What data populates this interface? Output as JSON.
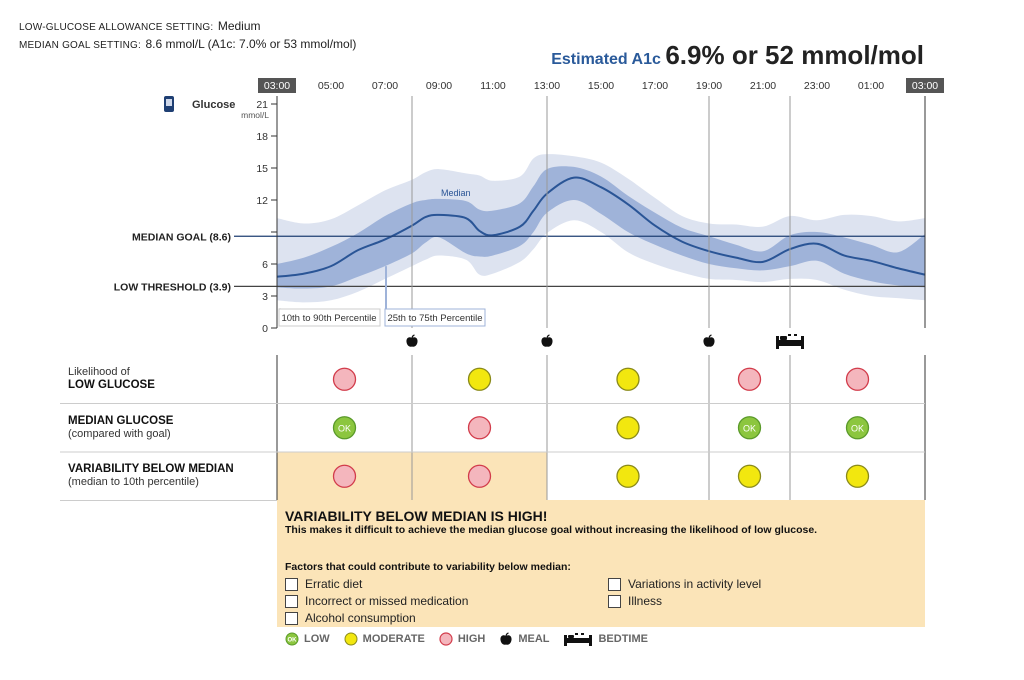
{
  "header": {
    "allowance_label": "LOW-GLUCOSE ALLOWANCE SETTING:",
    "allowance_value": "Medium",
    "goal_label": "MEDIAN GOAL SETTING:",
    "goal_value": "8.6 mmol/L (A1c: 7.0% or 53 mmol/mol)",
    "a1c_label": "Estimated A1c",
    "a1c_value": "6.9% or 52 mmol/mol"
  },
  "colors": {
    "band_outer": "#dde3f0",
    "band_inner": "#9fb3d9",
    "median_line": "#2a5596",
    "reference_line": "#1f3f73",
    "low_dot": "#8cc63f",
    "moderate_dot": "#f2e70f",
    "high_dot": "#f4b6bd",
    "high_ring": "#d23c4b",
    "note_bg": "#fbe4b8"
  },
  "chart_data": {
    "type": "area",
    "y_label": "Glucose",
    "y_unit": "mmol/L",
    "ylim": [
      0,
      21
    ],
    "yticks": [
      0,
      3,
      6,
      9,
      12,
      15,
      18,
      21
    ],
    "ytick_labels": [
      "0",
      "3",
      "6",
      "",
      "12",
      "15",
      "18",
      "21"
    ],
    "x_unit": "hours since 03:00",
    "xlim": [
      0,
      24
    ],
    "xtick_labels": [
      "03:00",
      "05:00",
      "07:00",
      "09:00",
      "11:00",
      "13:00",
      "15:00",
      "17:00",
      "19:00",
      "21:00",
      "23:00",
      "01:00",
      "03:00"
    ],
    "x": [
      0,
      1,
      2,
      3,
      4,
      5,
      5.5,
      6,
      7,
      7.5,
      8,
      9,
      9.5,
      10,
      11,
      12,
      13,
      14,
      15,
      16,
      17,
      18,
      19,
      20,
      21,
      22,
      23,
      24
    ],
    "median": [
      4.8,
      5.1,
      5.8,
      7.3,
      8.3,
      9.6,
      10.4,
      10.6,
      10.3,
      9.1,
      8.7,
      9.5,
      11,
      12.6,
      14.1,
      13.2,
      11.6,
      9.6,
      8.1,
      7.2,
      6.6,
      6.2,
      7.4,
      7.9,
      6.8,
      6.3,
      5.6,
      5.0
    ],
    "p25": [
      3.8,
      3.7,
      3.9,
      4.8,
      5.8,
      7.0,
      8.0,
      8.5,
      7.0,
      6.7,
      6.8,
      7.7,
      9.0,
      10.8,
      12.0,
      10.7,
      9.0,
      7.8,
      6.8,
      6.0,
      5.6,
      5.4,
      5.8,
      6.3,
      5.1,
      4.4,
      4.0,
      3.8
    ],
    "p75": [
      6.0,
      6.6,
      7.6,
      8.9,
      10.5,
      11.7,
      12.0,
      12.1,
      11.9,
      11.1,
      11.0,
      11.7,
      13.3,
      14.9,
      15.1,
      14.2,
      12.4,
      10.8,
      9.4,
      8.6,
      7.8,
      7.2,
      8.7,
      9.0,
      8.5,
      7.8,
      7.1,
      8.8
    ],
    "p10": [
      2.6,
      2.4,
      2.6,
      3.4,
      4.6,
      5.8,
      6.4,
      6.8,
      6.4,
      5.0,
      5.1,
      6.2,
      7.4,
      8.9,
      10.1,
      9.0,
      7.1,
      6.0,
      5.2,
      4.6,
      4.5,
      4.3,
      4.6,
      4.5,
      3.6,
      3.0,
      2.8,
      2.6
    ],
    "p90": [
      10.3,
      9.8,
      10.2,
      11.5,
      12.9,
      13.9,
      14.6,
      14.9,
      14.5,
      14.3,
      13.8,
      14.2,
      15.9,
      16.3,
      16.1,
      15.5,
      14.0,
      12.2,
      10.5,
      9.8,
      9.7,
      9.5,
      10.5,
      10.1,
      10.6,
      10.5,
      10.0,
      10.3
    ],
    "median_label": "Median",
    "median_label_x": 6,
    "goal_value": 8.6,
    "goal_label": "MEDIAN GOAL (8.6)",
    "low_threshold_value": 3.9,
    "low_threshold_label": "LOW THRESHOLD (3.9)",
    "divider_x": [
      5,
      10,
      16,
      19
    ],
    "meal_x": [
      5,
      10,
      16
    ],
    "bedtime_x": 19,
    "legend_outer": "10th to 90th Percentile",
    "legend_inner": "25th to 75th Percentile",
    "legend_outer_pointer_x": 0,
    "legend_inner_pointer_x": 4
  },
  "grid": {
    "segments_x": [
      0,
      5,
      10,
      16,
      19,
      24
    ],
    "rows": [
      {
        "title": "Likelihood of",
        "subtitle": "LOW GLUCOSE",
        "title_bold": false,
        "levels": [
          "high",
          "moderate",
          "moderate",
          "high",
          "high"
        ]
      },
      {
        "title": "MEDIAN GLUCOSE",
        "subtitle": "(compared with goal)",
        "title_bold": true,
        "levels": [
          "low",
          "high",
          "moderate",
          "low",
          "low"
        ]
      },
      {
        "title": "VARIABILITY BELOW MEDIAN",
        "subtitle": "(median to 10th percentile)",
        "title_bold": true,
        "levels": [
          "high",
          "high",
          "moderate",
          "moderate",
          "moderate"
        ]
      }
    ],
    "ok_text": "OK",
    "highlight_until_x": 10
  },
  "note": {
    "heading": "VARIABILITY BELOW MEDIAN IS HIGH!",
    "subheading": "This makes it difficult to achieve the median glucose goal without increasing the likelihood of low glucose.",
    "factors_title": "Factors that could contribute to variability below median:",
    "factors_left": [
      "Erratic diet",
      "Incorrect or missed medication",
      "Alcohol consumption"
    ],
    "factors_right": [
      "Variations in activity level",
      "Illness"
    ]
  },
  "legend": {
    "low": "LOW",
    "moderate": "MODERATE",
    "high": "HIGH",
    "meal": "MEAL",
    "bedtime": "BEDTIME",
    "ok_text": "OK"
  },
  "icons": {
    "device": "cgm-device-icon",
    "meal": "apple-icon",
    "bedtime": "bed-icon"
  }
}
